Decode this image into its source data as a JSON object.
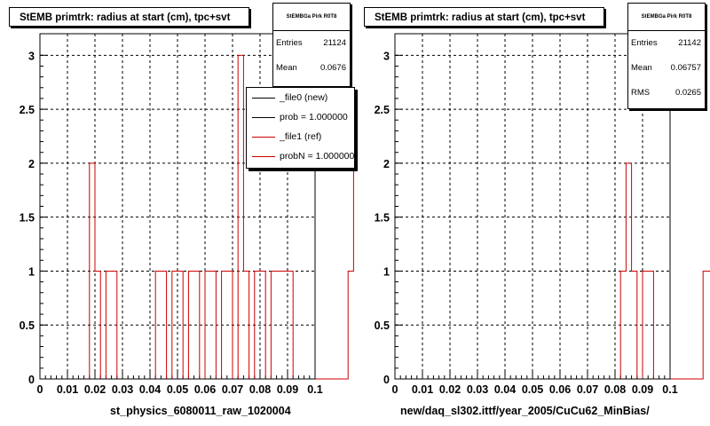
{
  "colors": {
    "background": "#ffffff",
    "ref_line": "#cc0000",
    "new_line": "#000000",
    "grid": "#000000"
  },
  "panels": [
    {
      "title": "StEMB primtrk: radius at start (cm), tpc+svt",
      "xlabel": "st_physics_6080011_raw_1020004",
      "stats": {
        "name": "StEMBGa Pirk R0T8",
        "rows": [
          {
            "label": "Entries",
            "value": "21124"
          },
          {
            "label": "Mean",
            "value": "0.0676"
          }
        ]
      },
      "legend": [
        {
          "label": "_file0 (new)",
          "color": "#000000"
        },
        {
          "label": "prob = 1.000000",
          "color": "#000000"
        },
        {
          "label": "_file1 (ref)",
          "color": "#cc0000"
        },
        {
          "label": "probN = 1.000000",
          "color": "#cc0000"
        }
      ]
    },
    {
      "title": "StEMB primtrk: radius at start (cm), tpc+svt",
      "xlabel": "new/daq_sl302.ittf/year_2005/CuCu62_MinBias/",
      "stats": {
        "name": "StEMBGa Pirk R0T8",
        "rows": [
          {
            "label": "Entries",
            "value": "21142"
          },
          {
            "label": "Mean",
            "value": "0.06757"
          },
          {
            "label": "RMS",
            "value": "0.0265"
          }
        ]
      },
      "legend": []
    }
  ],
  "chart_data": [
    {
      "type": "histogram",
      "title": "StEMB primtrk: radius at start (cm), tpc+svt",
      "xlabel": "st_physics_6080011_raw_1020004",
      "ylabel": "",
      "xlim": [
        0,
        0.1
      ],
      "ylim": [
        0,
        3.2
      ],
      "grid": true,
      "x_ticks": [
        "0",
        "0.01",
        "0.02",
        "0.03",
        "0.04",
        "0.05",
        "0.06",
        "0.07",
        "0.08",
        "0.09",
        "0.1"
      ],
      "y_ticks": [
        "0",
        "0.5",
        "1",
        "1.5",
        "2",
        "2.5",
        "3"
      ],
      "bin_width": 0.002,
      "series": [
        {
          "name": "_file1 (ref)",
          "color": "#cc0000",
          "values": [
            0,
            0,
            0,
            0,
            0,
            0,
            0,
            0,
            0,
            2,
            1,
            0,
            1,
            1,
            0,
            0,
            0,
            0,
            0,
            0,
            0,
            1,
            1,
            0,
            1,
            1,
            0,
            1,
            1,
            0,
            1,
            1,
            0,
            1,
            1,
            0,
            3,
            1,
            0,
            1,
            1,
            0,
            1,
            1,
            1,
            1,
            0,
            0,
            0,
            0,
            0,
            0,
            0,
            0,
            0,
            0,
            1,
            2,
            1,
            1,
            0,
            0,
            0,
            0,
            0,
            0,
            0,
            0,
            0,
            0,
            0,
            0,
            0,
            0,
            0,
            0,
            0,
            0,
            0,
            0,
            0,
            0,
            0,
            0,
            0,
            0,
            0,
            0,
            0,
            0,
            0,
            0,
            0,
            0,
            0,
            0,
            0,
            0,
            0,
            0
          ]
        }
      ],
      "legend": [
        "_file0 (new)",
        "prob = 1.000000",
        "_file1 (ref)",
        "probN = 1.000000"
      ],
      "legend_position": "top-right",
      "stats": {
        "Entries": "21124",
        "Mean": "0.0676"
      }
    },
    {
      "type": "histogram",
      "title": "StEMB primtrk: radius at start (cm), tpc+svt",
      "xlabel": "new/daq_sl302.ittf/year_2005/CuCu62_MinBias/",
      "ylabel": "",
      "xlim": [
        0,
        0.1
      ],
      "ylim": [
        0,
        3.2
      ],
      "grid": true,
      "x_ticks": [
        "0",
        "0.01",
        "0.02",
        "0.03",
        "0.04",
        "0.05",
        "0.06",
        "0.07",
        "0.08",
        "0.09",
        "0.1"
      ],
      "y_ticks": [
        "0",
        "0.5",
        "1",
        "1.5",
        "2",
        "2.5",
        "3"
      ],
      "bin_width": 0.002,
      "series": [
        {
          "name": "",
          "color": "#cc0000",
          "values": [
            0,
            0,
            0,
            0,
            0,
            0,
            0,
            0,
            0,
            0,
            0,
            0,
            0,
            0,
            0,
            0,
            0,
            0,
            0,
            0,
            0,
            0,
            0,
            0,
            0,
            0,
            0,
            0,
            0,
            0,
            0,
            0,
            0,
            0,
            0,
            0,
            0,
            0,
            0,
            0,
            0,
            1,
            2,
            1,
            0,
            1,
            1,
            0,
            0,
            0,
            0,
            0,
            0,
            0,
            0,
            0,
            1,
            1,
            0,
            1,
            1,
            1,
            1,
            1,
            0,
            1,
            1,
            0,
            0,
            0,
            0,
            0,
            0,
            0,
            0,
            0,
            0,
            0,
            0,
            0,
            0,
            0,
            0,
            0,
            0,
            0,
            0,
            0,
            0,
            0,
            0,
            0,
            0,
            0,
            0,
            0,
            0,
            0,
            0,
            0
          ]
        }
      ],
      "legend": [],
      "stats": {
        "Entries": "21142",
        "Mean": "0.06757",
        "RMS": "0.0265"
      }
    }
  ]
}
